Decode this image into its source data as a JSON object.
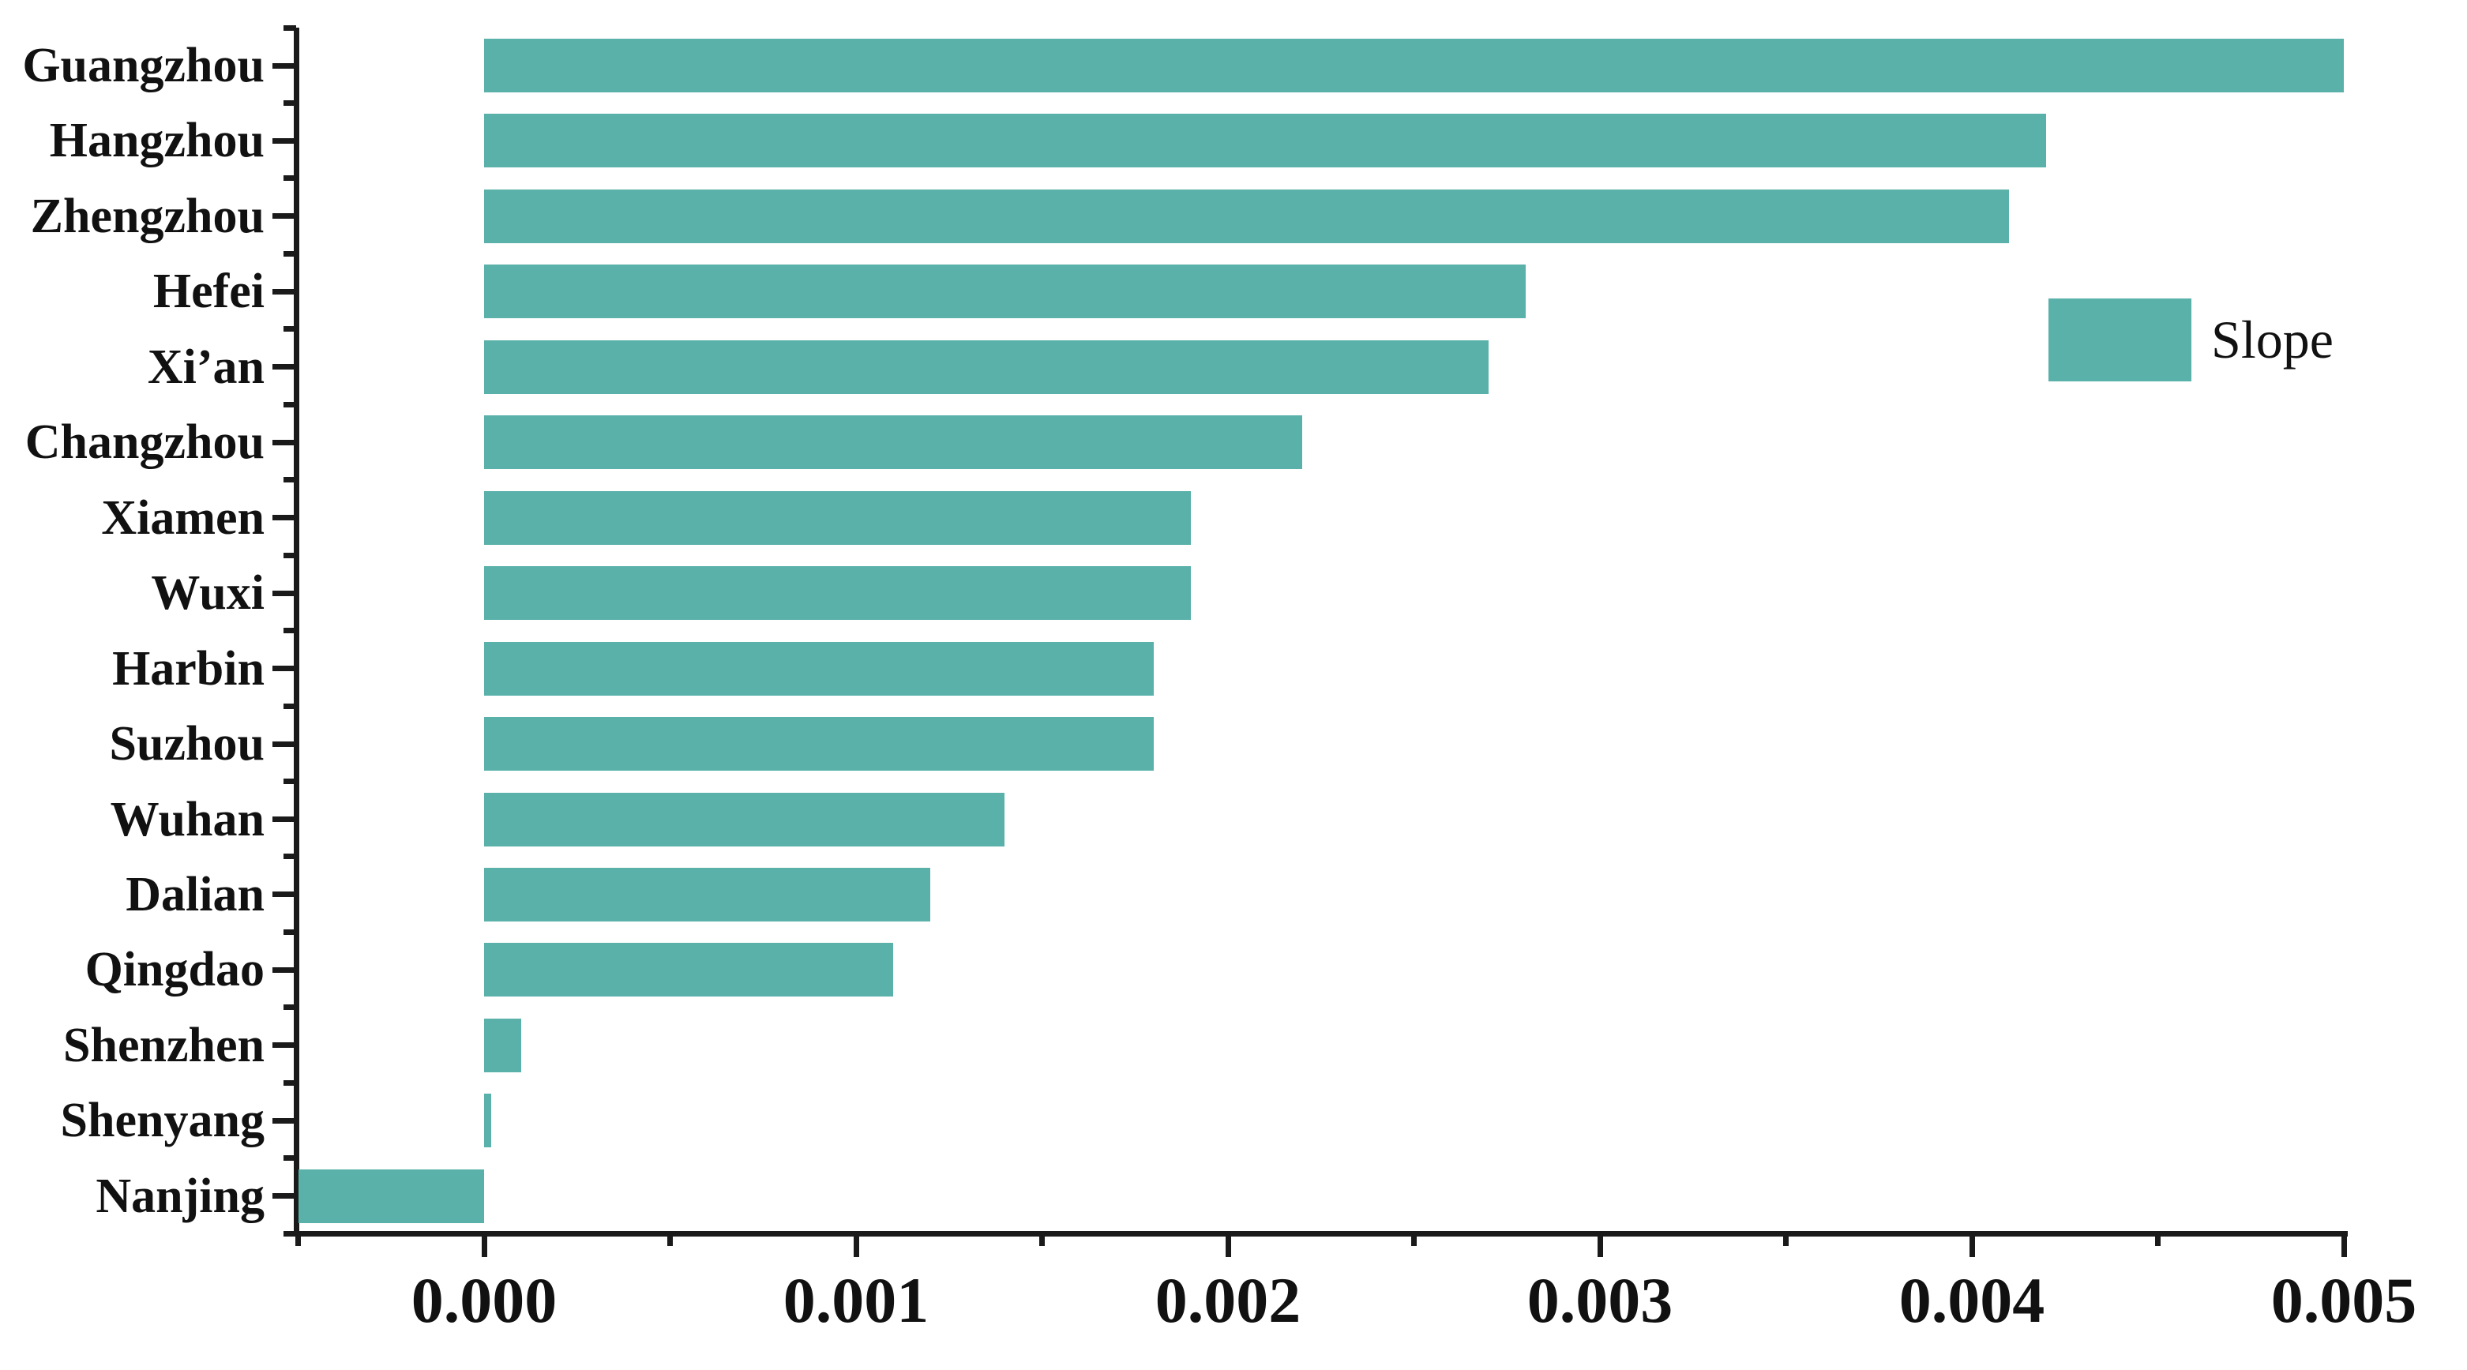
{
  "chart_data": {
    "type": "bar",
    "orientation": "horizontal",
    "title": "",
    "xlabel": "",
    "ylabel": "",
    "categories": [
      "Guangzhou",
      "Hangzhou",
      "Zhengzhou",
      "Hefei",
      "Xi’an",
      "Changzhou",
      "Xiamen",
      "Wuxi",
      "Harbin",
      "Suzhou",
      "Wuhan",
      "Dalian",
      "Qingdao",
      "Shenzhen",
      "Shenyang",
      "Nanjing"
    ],
    "series": [
      {
        "name": "Slope",
        "values": [
          0.005,
          0.0042,
          0.0041,
          0.0028,
          0.0027,
          0.0022,
          0.0019,
          0.0019,
          0.0018,
          0.0018,
          0.0014,
          0.0012,
          0.0011,
          0.0001,
          2e-05,
          -0.0005
        ]
      }
    ],
    "xlim": [
      -0.0005,
      0.005
    ],
    "x_ticks": [
      0,
      0.001,
      0.002,
      0.003,
      0.004,
      0.005
    ],
    "x_tick_labels": [
      "0.000",
      "0.001",
      "0.002",
      "0.003",
      "0.004",
      "0.005"
    ],
    "x_minor_ticks": [
      -0.0005,
      0.0005,
      0.0015,
      0.0025,
      0.0035,
      0.0045
    ],
    "grid": false,
    "legend": {
      "label": "Slope",
      "position": "right"
    },
    "colors": {
      "bar": "#59B1A9",
      "axis": "#1a1a1a",
      "text": "#111111",
      "background": "#ffffff"
    }
  }
}
